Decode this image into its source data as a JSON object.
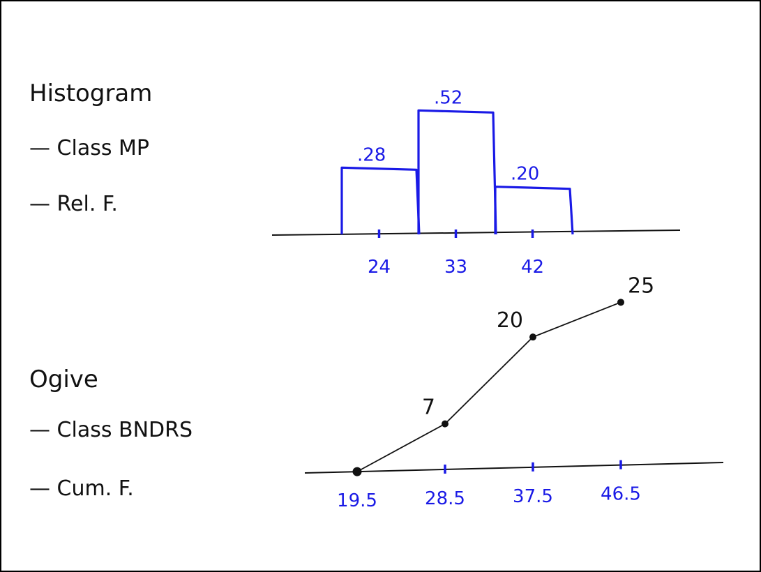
{
  "notes": {
    "histogram_title": "Histogram",
    "histogram_item1": "— Class MP",
    "histogram_item2": "— Rel. F.",
    "ogive_title": "Ogive",
    "ogive_item1": "— Class BNDRS",
    "ogive_item2": "— Cum. F."
  },
  "colors": {
    "ink": "#111111",
    "blue": "#1a1ae6",
    "border": "#000000"
  },
  "chart_data": [
    {
      "type": "bar",
      "categories": [
        "24",
        "33",
        "42"
      ],
      "values": [
        0.28,
        0.52,
        0.2
      ],
      "value_labels": [
        ".28",
        ".52",
        ".20"
      ],
      "ylim": [
        0,
        0.6
      ]
    },
    {
      "type": "line",
      "x": [
        19.5,
        28.5,
        37.5,
        46.5
      ],
      "x_tick_labels": [
        "19.5",
        "28.5",
        "37.5",
        "46.5"
      ],
      "y": [
        0,
        7,
        20,
        25
      ],
      "point_labels": [
        "",
        "7",
        "20",
        "25"
      ],
      "ylim": [
        0,
        30
      ]
    }
  ]
}
